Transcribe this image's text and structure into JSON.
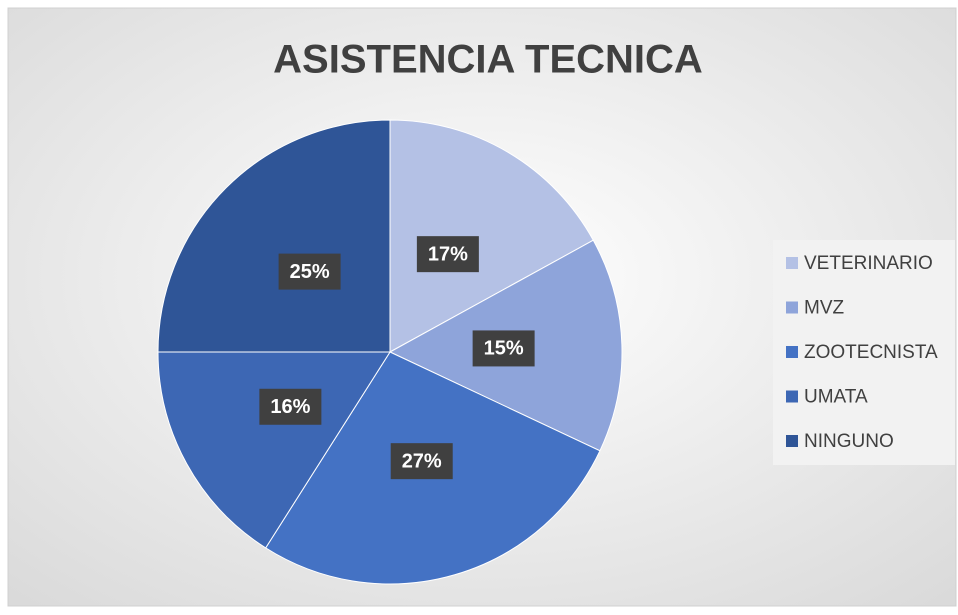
{
  "chart_data": {
    "type": "pie",
    "title": "ASISTENCIA TECNICA",
    "categories": [
      "VETERINARIO",
      "MVZ",
      "ZOOTECNISTA",
      "UMATA",
      "NINGUNO"
    ],
    "values": [
      17,
      15,
      27,
      16,
      25
    ],
    "value_labels": [
      "17%",
      "15%",
      "27%",
      "16%",
      "25%"
    ],
    "colors": [
      "#b4c1e5",
      "#8ea4da",
      "#4472c4",
      "#3d67b4",
      "#2f5597"
    ],
    "legend": "right"
  }
}
